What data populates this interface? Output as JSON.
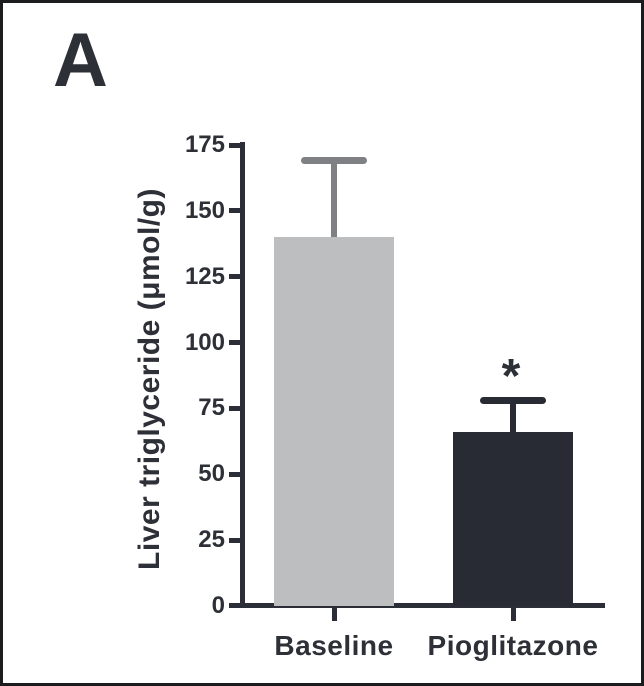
{
  "panel": {
    "label": "A"
  },
  "colors": {
    "ink": "#2e3038",
    "axis": "#2b2e36",
    "background": "#ffffff",
    "border": "#1b1c1e"
  },
  "chart_data": {
    "type": "bar",
    "title": "",
    "xlabel": "",
    "ylabel": "Liver triglyceride (μmol/g)",
    "categories": [
      "Baseline",
      "Pioglitazone"
    ],
    "values": [
      140,
      66
    ],
    "error_up": [
      29,
      12
    ],
    "ylim": [
      0,
      175
    ],
    "yticks": [
      175,
      150,
      125,
      100,
      75,
      50,
      25,
      0
    ],
    "grid": false,
    "legend": "none",
    "bar_colors": [
      "#bcbec0",
      "#282b33"
    ],
    "error_colors": [
      "#7e8083",
      "#282b33"
    ],
    "annotations": [
      {
        "text": "*",
        "category": "Pioglitazone"
      }
    ]
  }
}
